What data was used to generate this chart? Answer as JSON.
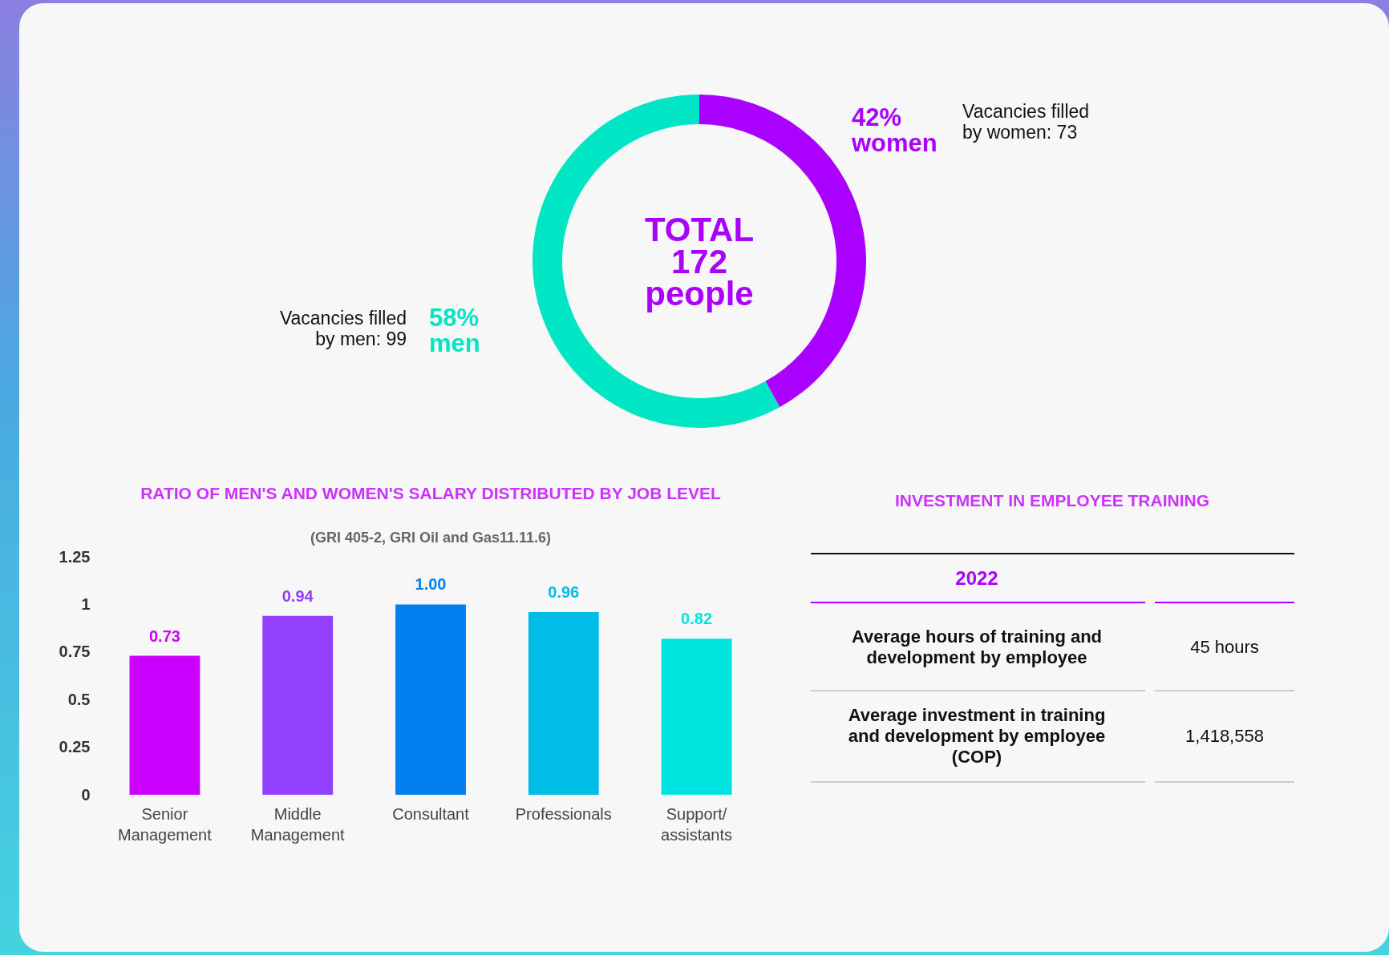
{
  "chart_data": [
    {
      "type": "donut",
      "categories": [
        "women",
        "men"
      ],
      "values": [
        42,
        58
      ],
      "colors": [
        "#aa00ff",
        "#00e5c3"
      ],
      "value_labels": [
        "42%",
        "58%"
      ],
      "annotations": [
        "TOTAL 172 people",
        "Vacancies filled by women: 73",
        "Vacancies filled by men: 99"
      ]
    },
    {
      "type": "bar",
      "title": "RATIO OF MEN'S AND WOMEN'S SALARY DISTRIBUTED BY JOB LEVEL",
      "subtitle": "(GRI 405-2, GRI  Oil and Gas11.11.6)",
      "categories": [
        "Senior Management",
        "Middle Management",
        "Consultant",
        "Professionals",
        "Support/ assistants"
      ],
      "values": [
        0.73,
        0.94,
        1.0,
        0.96,
        0.82
      ],
      "colors": [
        "#cc00ff",
        "#9340ff",
        "#0080ee",
        "#00bde8",
        "#00e4e0"
      ],
      "value_labels": [
        "0.73",
        "0.94",
        "1.00",
        "0.96",
        "0.82"
      ],
      "ylim": [
        0,
        1.25
      ],
      "yticks": [
        0,
        0.25,
        0.5,
        0.75,
        1,
        1.25
      ]
    },
    {
      "type": "other",
      "title": "INVESTMENT IN EMPLOYEE TRAINING",
      "annotations": [
        "2022",
        "Average hours of training and development by employee",
        "45 hours",
        "Average investment in training and development by employee (COP)",
        "1,418,558"
      ]
    }
  ]
}
